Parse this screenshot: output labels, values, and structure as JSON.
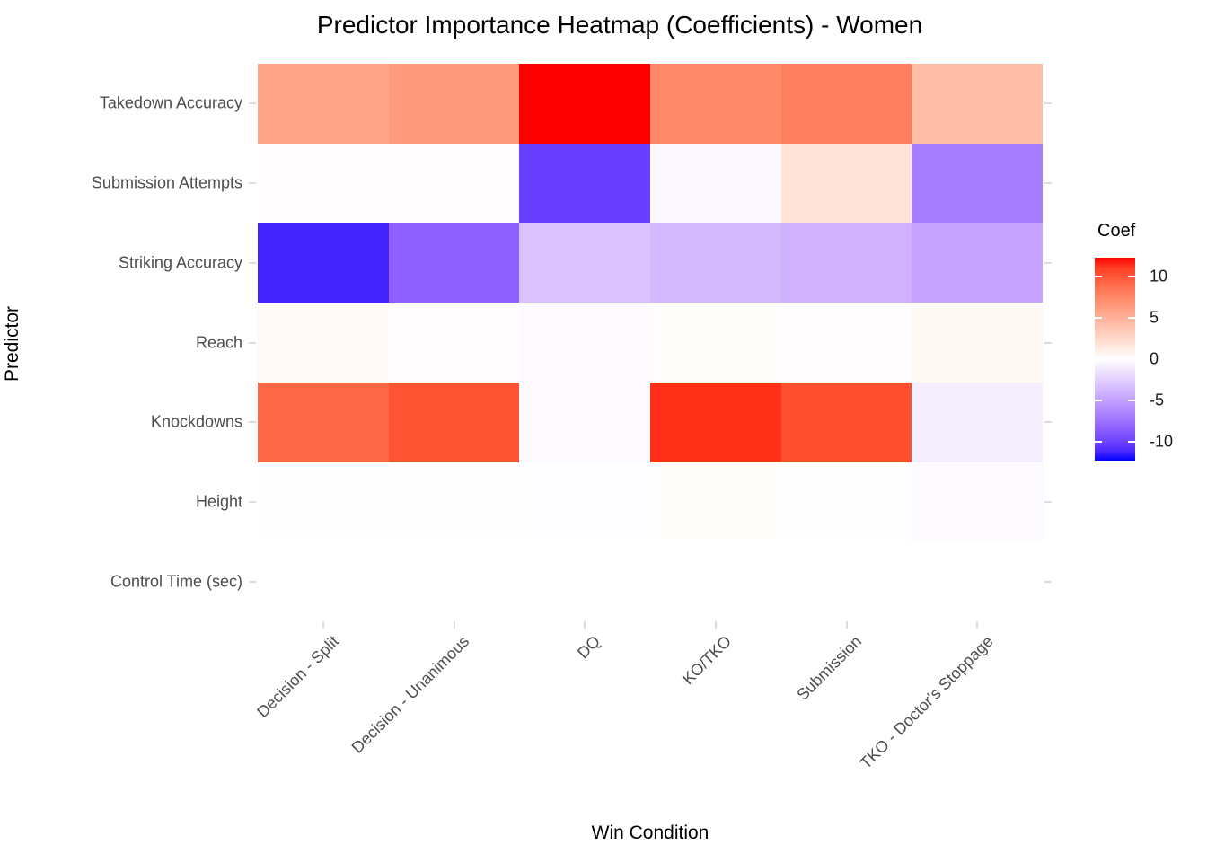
{
  "title": "Predictor Importance Heatmap (Coefficients) - Women",
  "chart_data": {
    "type": "heatmap",
    "title": "Predictor Importance Heatmap (Coefficients) - Women",
    "xlabel": "Win Condition",
    "ylabel": "Predictor",
    "columns": [
      "Decision - Split",
      "Decision - Unanimous",
      "DQ",
      "KO/TKO",
      "Submission",
      "TKO - Doctor's Stoppage"
    ],
    "rows": [
      "Takedown Accuracy",
      "Submission Attempts",
      "Striking Accuracy",
      "Reach",
      "Knockdowns",
      "Height",
      "Control Time (sec)"
    ],
    "values": [
      [
        5.8,
        6.4,
        12.3,
        7.3,
        8.0,
        4.3
      ],
      [
        0.1,
        0.1,
        -10.2,
        -0.4,
        1.8,
        -6.9
      ],
      [
        -11.4,
        -8.4,
        -3.2,
        -3.7,
        -4.1,
        -4.8
      ],
      [
        0.3,
        0.1,
        -0.2,
        0.15,
        0.1,
        0.4
      ],
      [
        9.2,
        10.2,
        -0.2,
        11.5,
        10.4,
        -0.9
      ],
      [
        0.05,
        0.05,
        -0.1,
        0.08,
        0.05,
        -0.3
      ],
      [
        0.0,
        0.0,
        0.0,
        0.0,
        0.0,
        0.0
      ]
    ],
    "legend": {
      "title": "Coef",
      "ticks": [
        10,
        5,
        0,
        -5,
        -10
      ],
      "limit": 12.3,
      "colors": {
        "low": "#0000FF",
        "mid": "#FFFFFF",
        "high": "#FF0000"
      }
    },
    "grid": "off",
    "legend_position": "right"
  }
}
